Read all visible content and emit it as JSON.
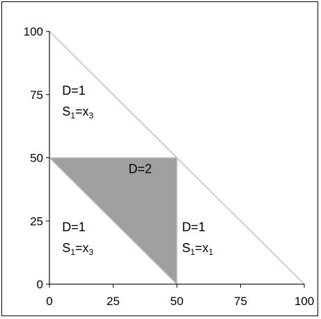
{
  "chart_data": {
    "type": "area",
    "title": "",
    "xlabel": "",
    "ylabel": "",
    "xlim": [
      0,
      100
    ],
    "ylim": [
      0,
      100
    ],
    "x_ticks": [
      "0",
      "25",
      "50",
      "75",
      "100"
    ],
    "y_ticks": [
      "0",
      "25",
      "50",
      "75",
      "100"
    ],
    "grid": false,
    "legend": "none",
    "outer_triangle": [
      [
        0,
        100
      ],
      [
        100,
        0
      ],
      [
        0,
        0
      ]
    ],
    "shaded_region": {
      "polygon": [
        [
          0,
          50
        ],
        [
          50,
          50
        ],
        [
          50,
          0
        ]
      ],
      "fill": "#a0a0a0"
    },
    "boundary_segments": [
      [
        [
          0,
          50
        ],
        [
          50,
          50
        ]
      ],
      [
        [
          50,
          50
        ],
        [
          50,
          0
        ]
      ],
      [
        [
          0,
          50
        ],
        [
          50,
          0
        ]
      ]
    ],
    "line_color": "#bfbfbf",
    "region_labels": [
      {
        "x": 5,
        "y": 75,
        "lines": [
          {
            "base": "D=1"
          },
          {
            "base": "S",
            "sub1": "1",
            "mid": "=x",
            "sub2": "3"
          }
        ]
      },
      {
        "x": 31,
        "y": 44,
        "lines": [
          {
            "base": "D=2"
          }
        ]
      },
      {
        "x": 5,
        "y": 21,
        "lines": [
          {
            "base": "D=1"
          },
          {
            "base": "S",
            "sub1": "1",
            "mid": "=x",
            "sub2": "3"
          }
        ]
      },
      {
        "x": 52,
        "y": 21,
        "lines": [
          {
            "base": "D=1"
          },
          {
            "base": "S",
            "sub1": "1",
            "mid": "=x",
            "sub2": "1"
          }
        ]
      }
    ]
  }
}
